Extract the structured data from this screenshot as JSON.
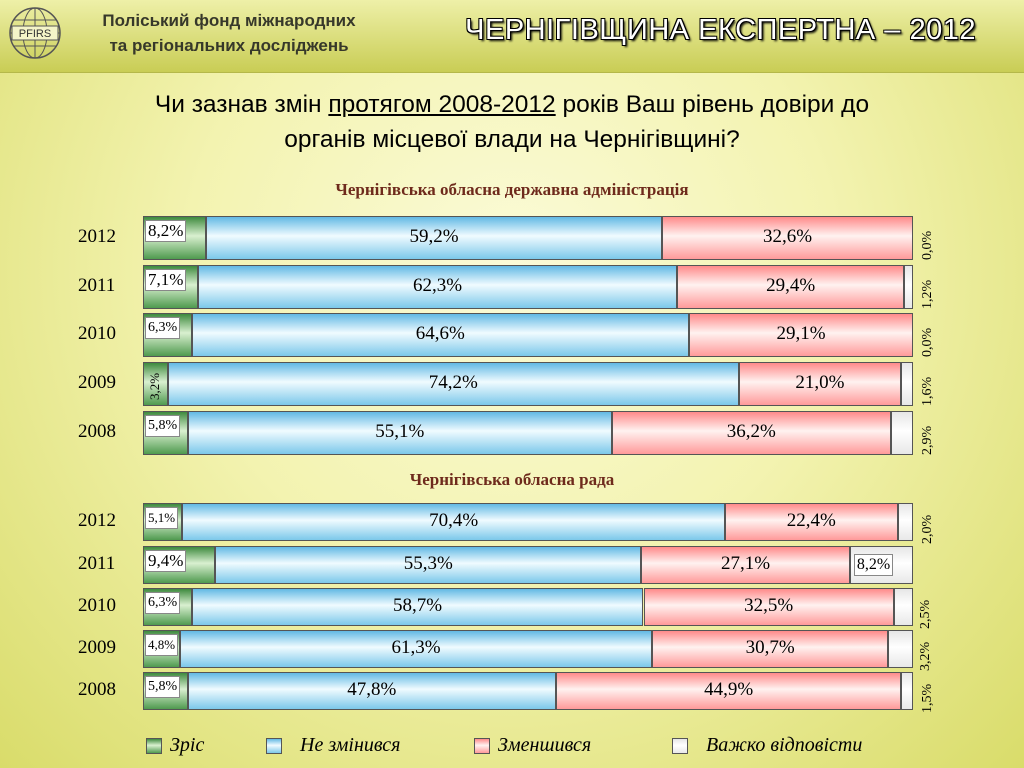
{
  "header": {
    "org_line1": "Поліський фонд міжнародних",
    "org_line2": "та регіональних досліджень",
    "logo_text": "PFIRS",
    "brand_title": "ЧЕРНІГІВЩИНА ЕКСПЕРТНА – 2012"
  },
  "question": {
    "part1": "Чи зазнав змін ",
    "underlined": "протягом 2008-2012",
    "part2": " років Ваш рівень довіри до",
    "line2": "органів  місцевої влади на Чернігівщині?"
  },
  "colors": {
    "zris": "#4f9a4f",
    "ne_zminyvsia": "#7cc8ea",
    "zmenshyvsia": "#ff9a9a",
    "vazhko": "#e8e8e8",
    "section_title": "#6e2a1c"
  },
  "legend": {
    "items": [
      {
        "label": "Зріс"
      },
      {
        "label": "Не змінився"
      },
      {
        "label": "Зменшився"
      },
      {
        "label": "Важко відповісти"
      }
    ]
  },
  "chart_data": [
    {
      "type": "bar",
      "title": "Чернігівська обласна державна адміністрація",
      "orientation": "horizontal-stacked-100",
      "categories": [
        "2012",
        "2011",
        "2010",
        "2009",
        "2008"
      ],
      "series": [
        {
          "name": "Зріс",
          "values": [
            8.2,
            7.1,
            6.3,
            3.2,
            5.8
          ],
          "labels": [
            "8,2%",
            "7,1%",
            "6,3%",
            "3,2%",
            "5,8%"
          ]
        },
        {
          "name": "Не змінився",
          "values": [
            59.2,
            62.3,
            64.6,
            74.2,
            55.1
          ],
          "labels": [
            "59,2%",
            "62,3%",
            "64,6%",
            "74,2%",
            "55,1%"
          ]
        },
        {
          "name": "Зменшився",
          "values": [
            32.6,
            29.4,
            29.1,
            21.0,
            36.2
          ],
          "labels": [
            "32,6%",
            "29,4%",
            "29,1%",
            "21,0%",
            "36,2%"
          ]
        },
        {
          "name": "Важко відповісти",
          "values": [
            0.0,
            1.2,
            0.0,
            1.6,
            2.9
          ],
          "labels": [
            "0,0%",
            "1,2%",
            "0,0%",
            "1,6%",
            "2,9%"
          ]
        }
      ]
    },
    {
      "type": "bar",
      "title": "Чернігівська обласна рада",
      "orientation": "horizontal-stacked-100",
      "categories": [
        "2012",
        "2011",
        "2010",
        "2009",
        "2008"
      ],
      "series": [
        {
          "name": "Зріс",
          "values": [
            5.1,
            9.4,
            6.3,
            4.8,
            5.8
          ],
          "labels": [
            "5,1%",
            "9,4%",
            "6,3%",
            "4,8%",
            "5,8%"
          ]
        },
        {
          "name": "Не змінився",
          "values": [
            70.4,
            55.3,
            58.7,
            61.3,
            47.8
          ],
          "labels": [
            "70,4%",
            "55,3%",
            "58,7%",
            "61,3%",
            "47,8%"
          ]
        },
        {
          "name": "Зменшився",
          "values": [
            22.4,
            27.1,
            32.5,
            30.7,
            44.9
          ],
          "labels": [
            "22,4%",
            "27,1%",
            "32,5%",
            "30,7%",
            "44,9%"
          ]
        },
        {
          "name": "Важко відповісти",
          "values": [
            2.0,
            8.2,
            2.5,
            3.2,
            1.5
          ],
          "labels": [
            "2,0%",
            "8,2%",
            "2,5%",
            "3,2%",
            "1,5%"
          ]
        }
      ]
    }
  ]
}
